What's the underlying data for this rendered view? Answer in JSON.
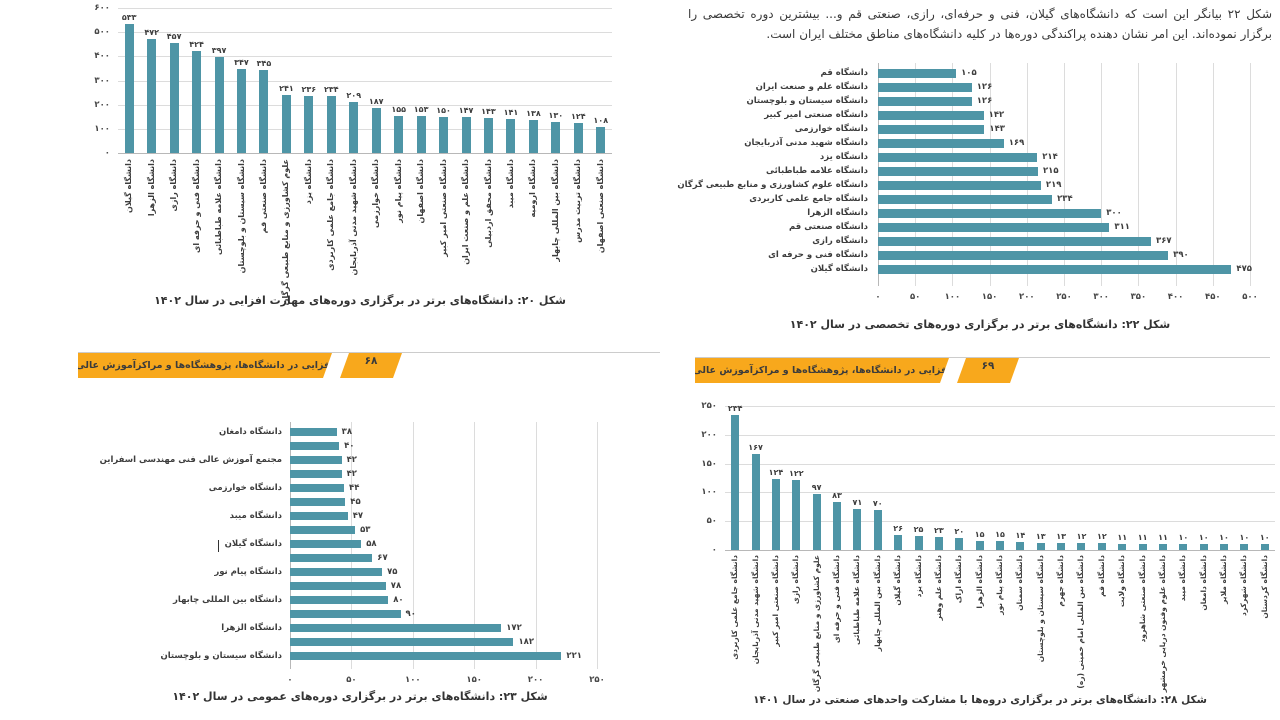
{
  "document": {
    "intro_paragraph": "شکل ۲۲ بیانگر این است که دانشگاه‌های گیلان، فنی و حرفه‌ای، رازی، صنعتی قم و... بیشترین دوره تخصصی را برگزار نموده‌اند. این امر نشان دهنده پراکندگی دوره‌ها در کلیه دانشگاه‌های مناطق مختلف ایران است.",
    "banner_left": {
      "title": "مهارت‌افزایی در دانشگاه‌ها، پژوهشگاه‌ها و مراکزآموزش عالی کشور",
      "page_number": "۶۸"
    },
    "banner_right": {
      "title": "مهارت‌افزایی در دانشگاه‌ها، پژوهشگاه‌ها و مراکزآموزش عالی کشور",
      "page_number": "۶۹"
    }
  },
  "colors": {
    "bar": "#4E95A6",
    "banner": "#F8A81C",
    "grid": "#DCDCDC",
    "axis": "#B8B8B8",
    "text": "#3D3D3D"
  },
  "chart_data": [
    {
      "id": "fig20",
      "type": "bar",
      "orientation": "vertical",
      "caption": "شکل ۲۰: دانشگاه‌های برتر در برگزاری دوره‌های مهارت افزایی در سال ۱۴۰۲",
      "categories": [
        "دانشگاه گیلان",
        "دانشگاه الزهرا",
        "دانشگاه رازی",
        "دانشگاه فنی و حرفه ای",
        "دانشگاه علامه طباطبائی",
        "دانشگاه سیستان و بلوچستان",
        "دانشگاه صنعتی قم",
        "علوم کشاورزی و منابع طبیعی گرگان",
        "دانشگاه یزد",
        "دانشگاه جامع علمی کاربردی",
        "دانشگاه شهید مدنی آذربایجان",
        "دانشگاه خوارزمی",
        "دانشگاه پیام نور",
        "دانشگاه اصفهان",
        "دانشگاه صنعتی امیر کبیر",
        "دانشگاه علم و صنعت ایران",
        "دانشگاه محقق اردبیلی",
        "دانشگاه میبد",
        "دانشگاه ارومیه",
        "دانشگاه بین المللی چابهار",
        "دانشگاه تربیت مدرس",
        "دانشگاه صنعتی اصفهان"
      ],
      "values": [
        533,
        472,
        457,
        424,
        397,
        347,
        345,
        241,
        236,
        234,
        209,
        187,
        155,
        153,
        150,
        147,
        143,
        141,
        138,
        130,
        124,
        108
      ],
      "axis_max": 600,
      "tick_step": 100,
      "grid": true,
      "legend": false
    },
    {
      "id": "fig22",
      "type": "bar",
      "orientation": "horizontal",
      "caption": "شکل ۲۲: دانشگاه‌های برتر در برگزاری دوره‌های تخصصی در سال ۱۴۰۲",
      "categories": [
        "دانشگاه قم",
        "دانشگاه علم و صنعت ایران",
        "دانشگاه سیستان و بلوچستان",
        "دانشگاه صنعتی امیر کبیر",
        "دانشگاه خوارزمی",
        "دانشگاه شهید مدنی آذربایجان",
        "دانشگاه یزد",
        "دانشگاه علامه طباطبائی",
        "دانشگاه علوم کشاورزی و منابع طبیعی گرگان",
        "دانشگاه جامع علمی کاربردی",
        "دانشگاه الزهرا",
        "دانشگاه صنعتی قم",
        "دانشگاه رازی",
        "دانشگاه فنی و حرفه ای",
        "دانشگاه گیلان"
      ],
      "values": [
        105,
        126,
        126,
        142,
        143,
        169,
        214,
        215,
        219,
        234,
        300,
        311,
        367,
        390,
        475
      ],
      "axis_max": 500,
      "tick_step": 50,
      "grid": true,
      "legend": false
    },
    {
      "id": "fig23",
      "type": "bar",
      "orientation": "horizontal",
      "caption": "شکل ۲۳: دانشگاه‌های برتر در برگزاری دوره‌های عمومی در سال ۱۴۰۲",
      "categories": [
        "دانشگاه دامغان",
        "",
        "مجتمع آموزش عالی فنی مهندسی اسفراین",
        "",
        "دانشگاه خوارزمی",
        "",
        "دانشگاه میبد",
        "",
        "دانشگاه گیلان",
        "",
        "دانشگاه پیام نور",
        "",
        "دانشگاه بین المللی چابهار",
        "",
        "دانشگاه الزهرا",
        "",
        "دانشگاه سیستان و بلوچستان"
      ],
      "values": [
        38,
        40,
        42,
        42,
        44,
        45,
        47,
        53,
        58,
        67,
        75,
        78,
        80,
        90,
        172,
        182,
        221
      ],
      "axis_max": 250,
      "tick_step": 50,
      "grid": true,
      "legend": false
    },
    {
      "id": "fig28",
      "type": "bar",
      "orientation": "vertical",
      "caption": "شکل ۲۸: دانشگاه‌های برتر در برگزاری دروه‌ها با مشارکت واحدهای صنعتی در سال ۱۴۰۱",
      "categories": [
        "دانشگاه جامع علمی کاربردی",
        "دانشگاه شهید مدنی آذربایجان",
        "دانشگاه صنعتی امیر کبیر",
        "دانشگاه رازی",
        "علوم کشاورزی و منابع طبیعی گرگان",
        "دانشگاه فنی و حرفه ای",
        "دانشگاه علامه طباطبائی",
        "دانشگاه بین المللی چابهار",
        "دانشگاه گیلان",
        "دانشگاه یزد",
        "دانشگاه علم وهنر",
        "دانشگاه اراک",
        "دانشگاه الزهرا",
        "دانشگاه پیام نور",
        "دانشگاه سمنان",
        "دانشگاه سیستان و بلوچستان",
        "دانشگاه جهرم",
        "دانشگاه بین المللی امام خمینی (ره)",
        "دانشگاه قم",
        "دانشگاه ولایت",
        "دانشگاه صنعتی شاهرود",
        "دانشگاه علوم وفنون دریایی خرمشهر",
        "دانشگاه میبد",
        "دانشگاه دامغان",
        "دانشگاه ملایر",
        "دانشگاه شهرکرد",
        "دانشگاه کردستان"
      ],
      "values": [
        234,
        167,
        124,
        122,
        97,
        83,
        71,
        70,
        26,
        25,
        23,
        20,
        15,
        15,
        14,
        13,
        13,
        12,
        12,
        11,
        11,
        11,
        10,
        10,
        10,
        10,
        10
      ],
      "axis_max": 250,
      "tick_step": 50,
      "grid": true,
      "legend": false
    }
  ]
}
